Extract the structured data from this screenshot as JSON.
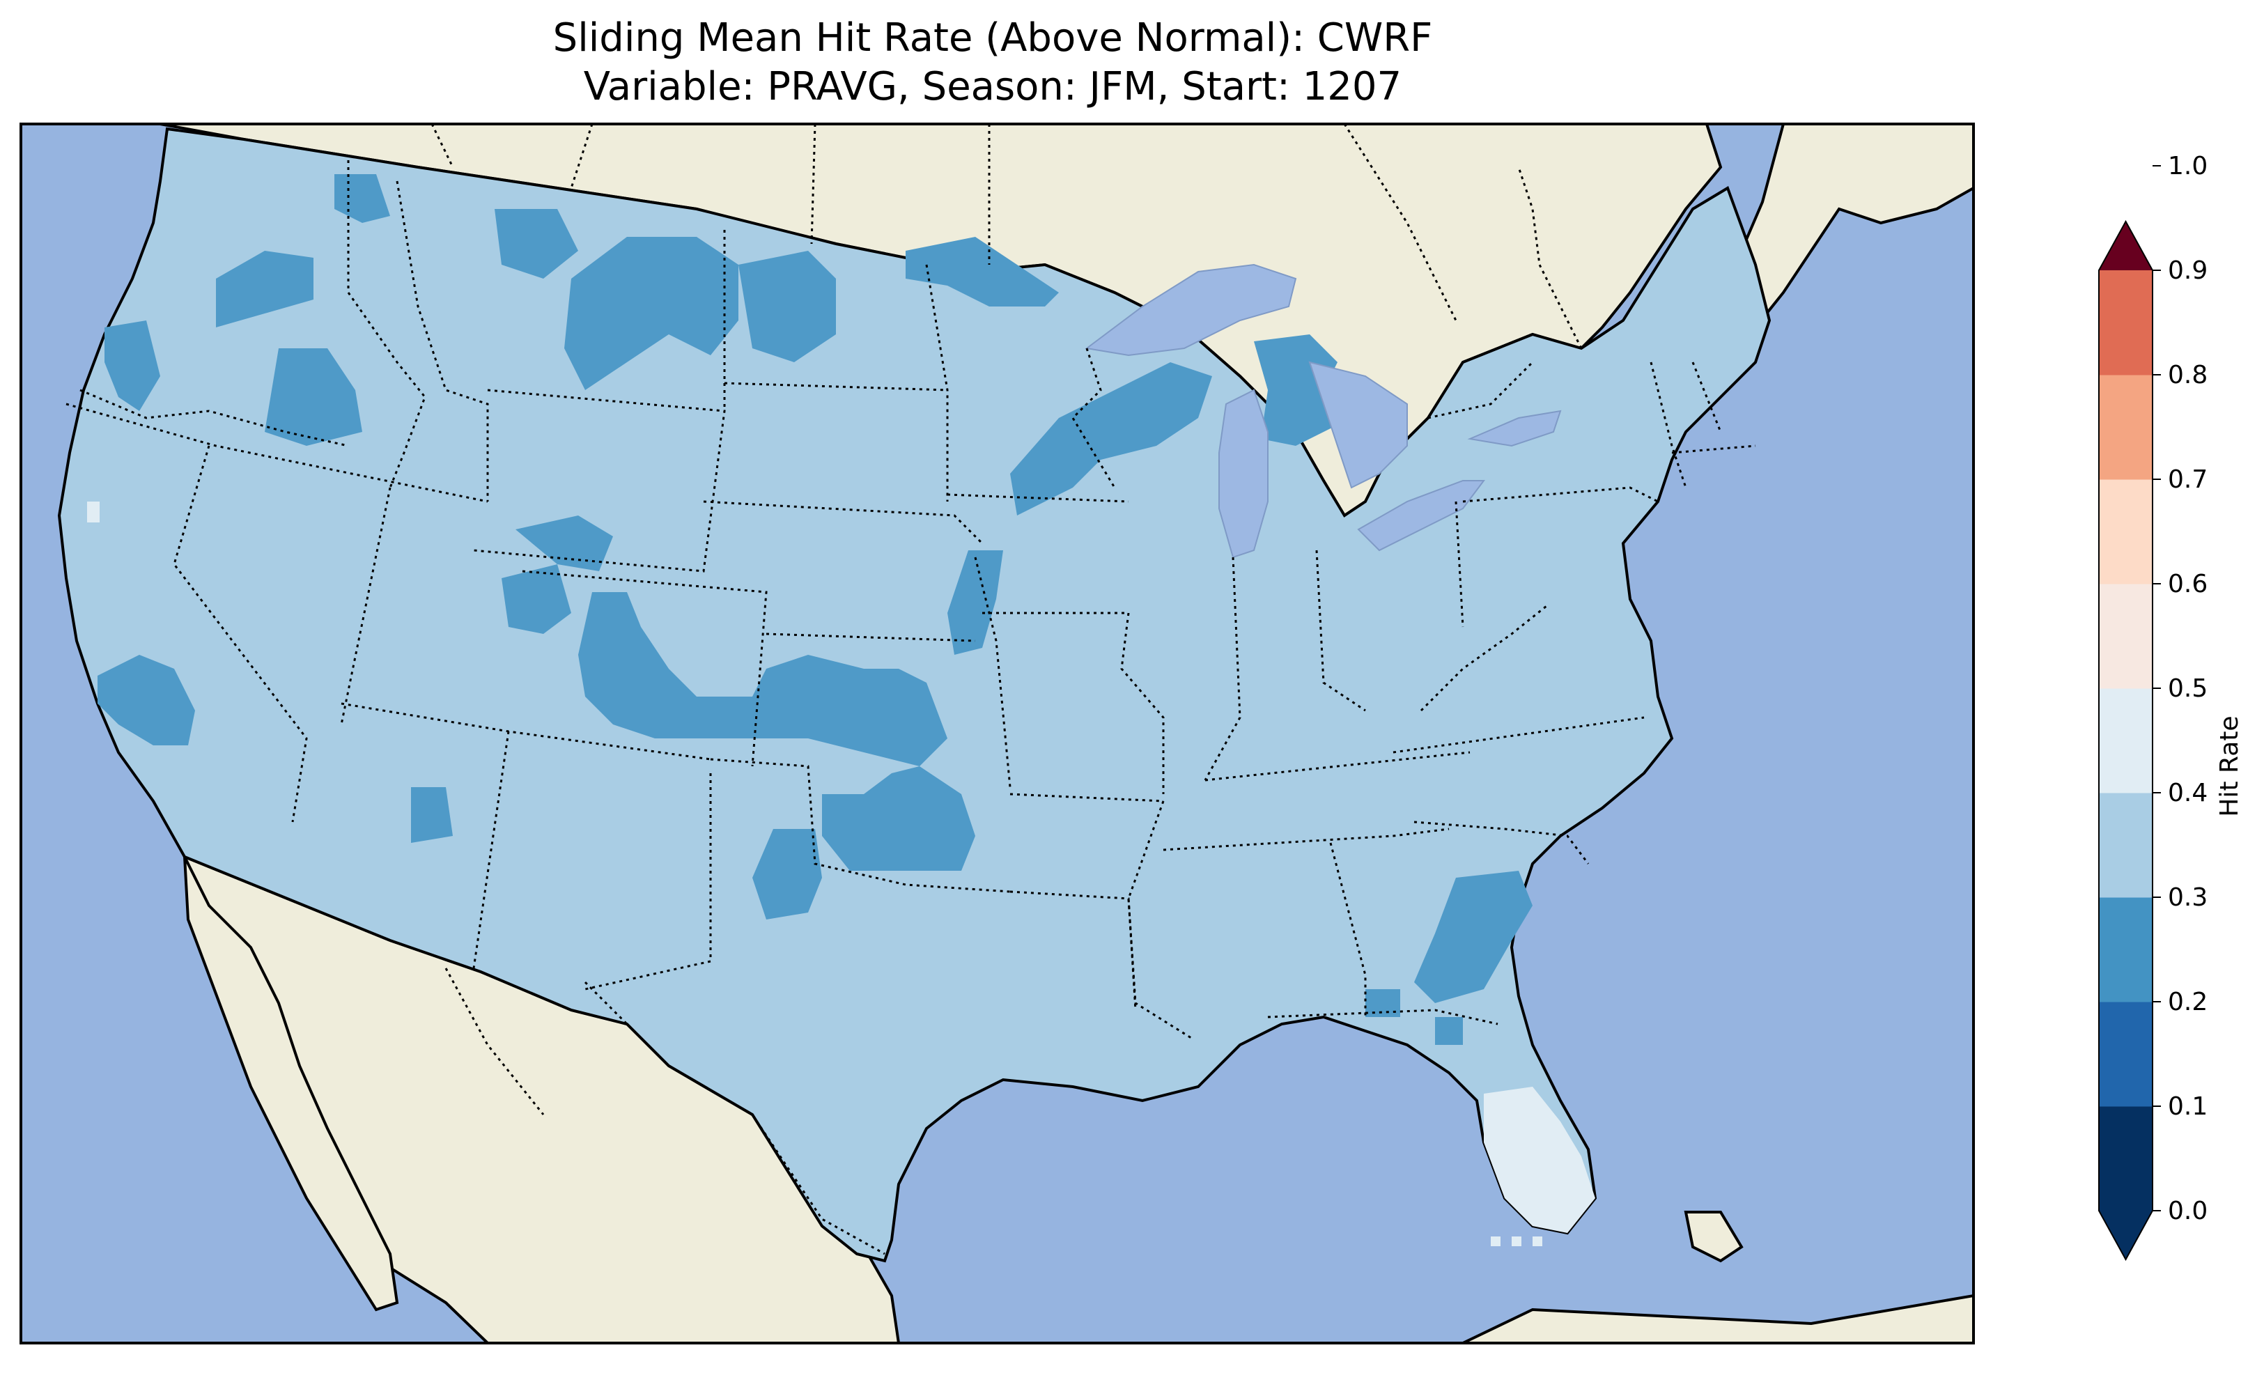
{
  "title_line1": "Sliding Mean Hit Rate (Above Normal): CWRF",
  "title_line2": "Variable: PRAVG, Season: JFM, Start: 1207",
  "map": {
    "projection": "Lambert Conformal (CONUS)",
    "land_color": "#efeddb",
    "ocean_color": "#96b4e0",
    "lake_color": "#9db8e3",
    "coastline_color": "#000000",
    "state_border_style": "dotted"
  },
  "colorbar": {
    "label": "Hit Rate",
    "extend": "both",
    "levels": [
      0.0,
      0.1,
      0.2,
      0.3,
      0.4,
      0.5,
      0.6,
      0.7,
      0.8,
      0.9,
      1.0
    ],
    "tick_labels": [
      "0.0",
      "0.1",
      "0.2",
      "0.3",
      "0.4",
      "0.5",
      "0.6",
      "0.7",
      "0.8",
      "0.9",
      "1.0"
    ],
    "colors": [
      "#053061",
      "#2166ac",
      "#4393c3",
      "#92c5de",
      "#d1e5f0",
      "#f7f7f7",
      "#fddbc7",
      "#f4a582",
      "#d6604d",
      "#b2182b",
      "#67001f"
    ]
  },
  "field_summary": {
    "dominant_class": "0.3-0.4",
    "dominant_color": "#a9cde4",
    "low_class": "0.2-0.3",
    "low_color": "#4f9ac8",
    "high_class": "0.4-0.5",
    "high_color": "#e1edf4",
    "regions_0_2_to_0_3": [
      "Washington",
      "Oregon",
      "Idaho",
      "Montana",
      "North Dakota",
      "Minnesota",
      "Wisconsin",
      "Michigan",
      "Iowa",
      "Wyoming",
      "Colorado",
      "Kansas",
      "Oklahoma",
      "Texas Panhandle",
      "Southern California",
      "Arizona",
      "Georgia",
      "South Carolina"
    ],
    "regions_0_4_to_0_5": [
      "Southern Florida",
      "Central California coast"
    ]
  }
}
